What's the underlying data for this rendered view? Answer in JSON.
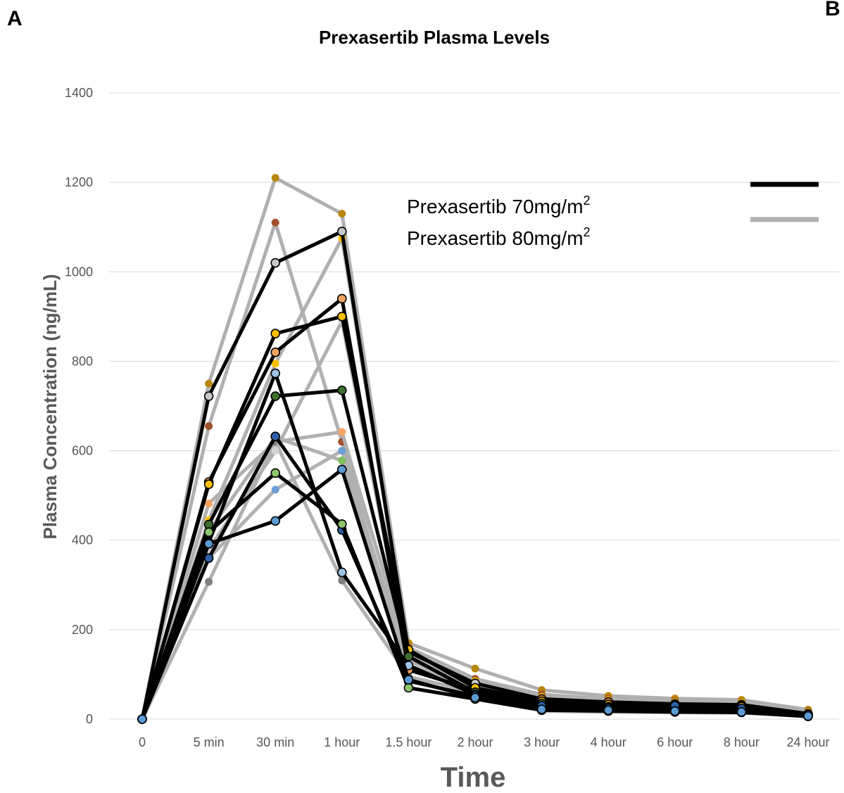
{
  "panel_labels": {
    "left": "A",
    "right": "B"
  },
  "chart_data": {
    "type": "line",
    "title": "Prexasertib  Plasma Levels",
    "xlabel": "Time",
    "ylabel": "Plasma Concentration  (ng/mL)",
    "categories": [
      "0",
      "5 min",
      "30 min",
      "1 hour",
      "1.5 hour",
      "2 hour",
      "3 hour",
      "4 hour",
      "6 hour",
      "8 hour",
      "24 hour"
    ],
    "ylim": [
      0,
      1400
    ],
    "yticks": [
      "0",
      "200",
      "400",
      "600",
      "800",
      "1000",
      "1200",
      "1400"
    ],
    "grid": true,
    "legend": {
      "placement": "top-right",
      "entries": [
        {
          "label": "Prexasertib 70mg/m",
          "sup": "2",
          "color": "#000000"
        },
        {
          "label": "Prexasertib 80mg/m",
          "sup": "2",
          "color": "#b0b0b0"
        }
      ]
    },
    "series": [
      {
        "group": "80",
        "line_color": "#b0b0b0",
        "marker_color": "#b8860b",
        "values": [
          0,
          750,
          1210,
          1130,
          170,
          113,
          65,
          52,
          46,
          43,
          21
        ]
      },
      {
        "group": "80",
        "line_color": "#b0b0b0",
        "marker_color": "#a0522d",
        "values": [
          0,
          655,
          1110,
          620,
          160,
          90,
          55,
          45,
          40,
          35,
          18
        ]
      },
      {
        "group": "80",
        "line_color": "#b0b0b0",
        "marker_color": "#f4a460",
        "values": [
          0,
          482,
          620,
          642,
          140,
          80,
          48,
          40,
          35,
          30,
          15
        ]
      },
      {
        "group": "80",
        "line_color": "#b0b0b0",
        "marker_color": "#6a9fd4",
        "values": [
          0,
          360,
          513,
          600,
          120,
          70,
          40,
          35,
          30,
          28,
          12
        ]
      },
      {
        "group": "80",
        "line_color": "#b0b0b0",
        "marker_color": "#7cc05a",
        "values": [
          0,
          420,
          630,
          578,
          110,
          65,
          38,
          32,
          28,
          25,
          12
        ]
      },
      {
        "group": "80",
        "line_color": "#b0b0b0",
        "marker_color": "#ffc000",
        "values": [
          0,
          445,
          795,
          1075,
          150,
          85,
          50,
          42,
          38,
          35,
          16
        ]
      },
      {
        "group": "80",
        "line_color": "#b0b0b0",
        "marker_color": "#7f7f7f",
        "values": [
          0,
          307,
          620,
          310,
          95,
          60,
          18,
          16,
          15,
          14,
          8
        ]
      },
      {
        "group": "80",
        "line_color": "#b0b0b0",
        "marker_color": "#d3d3d3",
        "values": [
          0,
          380,
          600,
          890,
          130,
          75,
          45,
          38,
          33,
          30,
          14
        ]
      },
      {
        "group": "70",
        "line_color": "#000000",
        "marker_color": "#c8c8c8",
        "values": [
          0,
          722,
          1020,
          1090,
          150,
          80,
          45,
          38,
          34,
          32,
          12
        ]
      },
      {
        "group": "70",
        "line_color": "#000000",
        "marker_color": "#f4a460",
        "values": [
          0,
          530,
          820,
          940,
          110,
          65,
          45,
          38,
          33,
          30,
          10
        ]
      },
      {
        "group": "70",
        "line_color": "#000000",
        "marker_color": "#ffc000",
        "values": [
          0,
          525,
          862,
          900,
          155,
          70,
          40,
          33,
          30,
          28,
          10
        ]
      },
      {
        "group": "70",
        "line_color": "#000000",
        "marker_color": "#3e6e2e",
        "values": [
          0,
          435,
          722,
          735,
          140,
          60,
          35,
          28,
          25,
          22,
          8
        ]
      },
      {
        "group": "70",
        "line_color": "#000000",
        "marker_color": "#9dc3e6",
        "values": [
          0,
          395,
          773,
          328,
          120,
          55,
          30,
          25,
          22,
          20,
          8
        ]
      },
      {
        "group": "70",
        "line_color": "#000000",
        "marker_color": "#2e5fa8",
        "values": [
          0,
          360,
          632,
          423,
          85,
          52,
          30,
          24,
          30,
          24,
          10
        ]
      },
      {
        "group": "70",
        "line_color": "#000000",
        "marker_color": "#8ec56a",
        "values": [
          0,
          418,
          550,
          436,
          70,
          45,
          20,
          18,
          16,
          15,
          6
        ]
      },
      {
        "group": "70",
        "line_color": "#000000",
        "marker_color": "#5b9bd5",
        "values": [
          0,
          392,
          443,
          558,
          88,
          48,
          22,
          20,
          18,
          16,
          7
        ]
      }
    ]
  }
}
